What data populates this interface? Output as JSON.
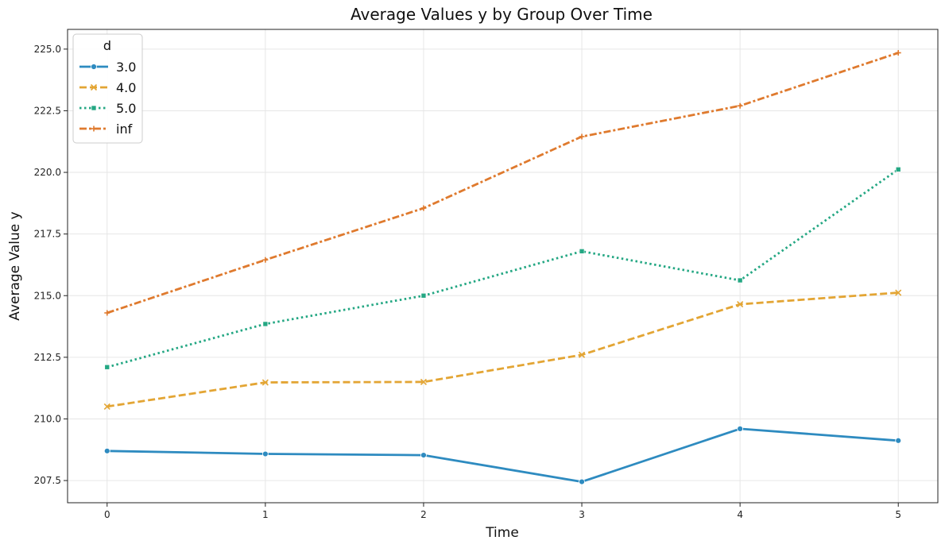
{
  "chart_data": {
    "type": "line",
    "title": "Average Values y by Group Over Time",
    "xlabel": "Time",
    "ylabel": "Average Value y",
    "x": [
      0,
      1,
      2,
      3,
      4,
      5
    ],
    "x_ticks": [
      "0",
      "1",
      "2",
      "3",
      "4",
      "5"
    ],
    "y_ticks": [
      "207.5",
      "210.0",
      "212.5",
      "215.0",
      "217.5",
      "220.0",
      "222.5",
      "225.0"
    ],
    "xlim": [
      -0.25,
      5.25
    ],
    "ylim": [
      206.6,
      225.8
    ],
    "grid": true,
    "legend": {
      "title": "d",
      "position": "top-left"
    },
    "series": [
      {
        "name": "3.0",
        "values": [
          208.7,
          208.58,
          208.53,
          207.45,
          209.6,
          209.12
        ],
        "color": "#2e8bc0",
        "dash": "solid",
        "marker": "circle"
      },
      {
        "name": "4.0",
        "values": [
          210.5,
          211.48,
          211.5,
          212.6,
          214.65,
          215.12
        ],
        "color": "#e3a534",
        "dash": "dashed",
        "marker": "x"
      },
      {
        "name": "5.0",
        "values": [
          212.1,
          213.85,
          215.0,
          216.8,
          215.62,
          220.12
        ],
        "color": "#24a783",
        "dash": "dotted",
        "marker": "square"
      },
      {
        "name": "inf",
        "values": [
          214.3,
          216.45,
          218.55,
          221.45,
          222.7,
          224.85
        ],
        "color": "#df7a2e",
        "dash": "dashdot",
        "marker": "plus"
      }
    ]
  }
}
